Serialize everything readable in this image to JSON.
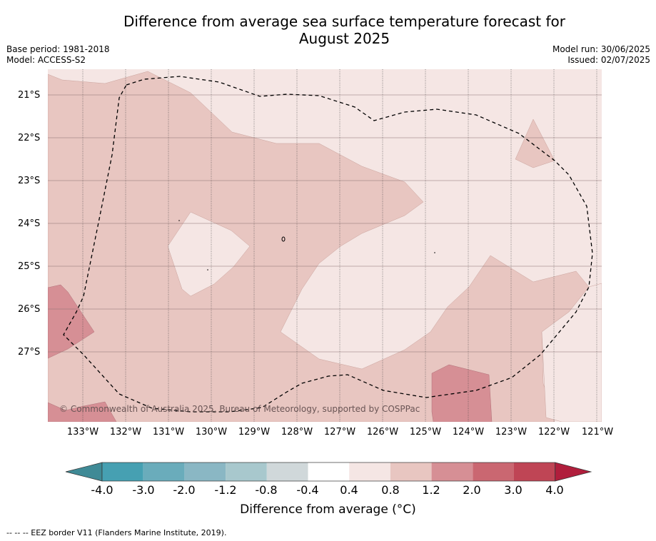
{
  "title_line1": "Difference from average sea surface temperature forecast for",
  "title_line2": "August 2025",
  "base_period": "Base period: 1981-2018",
  "model": "Model: ACCESS-S2",
  "model_run": "Model run: 30/06/2025",
  "issued": "Issued: 02/07/2025",
  "copyright": "© Commonwealth of Australia 2025, Bureau of Meteorology, supported by COSPPac",
  "lat_labels": [
    "21°S",
    "22°S",
    "23°S",
    "24°S",
    "25°S",
    "26°S",
    "27°S"
  ],
  "lon_labels": [
    "133°W",
    "132°W",
    "131°W",
    "130°W",
    "129°W",
    "128°W",
    "127°W",
    "126°W",
    "125°W",
    "124°W",
    "123°W",
    "122°W",
    "121°W"
  ],
  "colorbar": {
    "ticks": [
      "-4.0",
      "-3.0",
      "-2.0",
      "-1.2",
      "-0.8",
      "-0.4",
      "0.4",
      "0.8",
      "1.2",
      "2.0",
      "3.0",
      "4.0"
    ],
    "colors": [
      "#3f8a96",
      "#46a0b2",
      "#6aacbb",
      "#8ab7c4",
      "#a8c8cd",
      "#d0d8da",
      "#ffffff",
      "#f5e6e4",
      "#e8c6c1",
      "#d68f95",
      "#ca6771",
      "#bf4555",
      "#b01e3c"
    ],
    "label": "Difference from average (°C)"
  },
  "footnote": "--  --  -- EEZ border V11 (Flanders Marine Institute, 2019).",
  "colors": {
    "band_04_08": "#f5e6e4",
    "band_08_12": "#e8c6c1",
    "band_12_20": "#d68f95"
  }
}
